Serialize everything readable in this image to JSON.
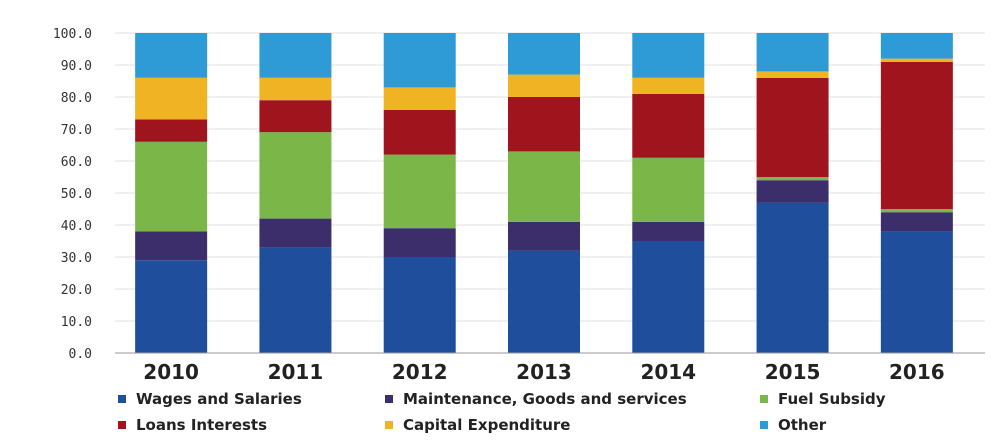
{
  "chart_data": {
    "type": "bar",
    "stacked": true,
    "categories": [
      "2010",
      "2011",
      "2012",
      "2013",
      "2014",
      "2015",
      "2016"
    ],
    "ylim": [
      0,
      100
    ],
    "yticks": [
      "0.0",
      "10.0",
      "20.0",
      "30.0",
      "40.0",
      "50.0",
      "60.0",
      "70.0",
      "80.0",
      "90.0",
      "100.0"
    ],
    "grid": true,
    "legend_placement": "bottom",
    "series": [
      {
        "name": "Wages and Salaries",
        "color": "#1f4e9c",
        "values": [
          29,
          33,
          30,
          32,
          35,
          47,
          38
        ]
      },
      {
        "name": "Maintenance, Goods and services",
        "color": "#3c2d6b",
        "values": [
          9,
          9,
          9,
          9,
          6,
          7,
          6
        ]
      },
      {
        "name": "Fuel Subsidy",
        "color": "#7ab648",
        "values": [
          28,
          27,
          23,
          22,
          20,
          1,
          1
        ]
      },
      {
        "name": "Loans Interests",
        "color": "#a0141e",
        "values": [
          7,
          10,
          14,
          17,
          20,
          31,
          46
        ]
      },
      {
        "name": "Capital Expenditure",
        "color": "#f0b323",
        "values": [
          13,
          7,
          7,
          7,
          5,
          2,
          1
        ]
      },
      {
        "name": "Other",
        "color": "#2e9bd6",
        "values": [
          14,
          14,
          17,
          13,
          14,
          12,
          8
        ]
      }
    ]
  }
}
